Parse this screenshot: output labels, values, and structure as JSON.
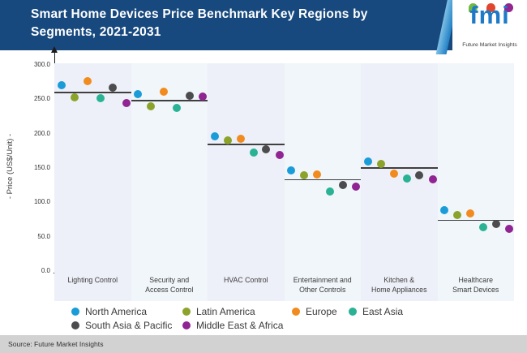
{
  "header": {
    "title_lines": [
      "Smart Home Devices Price Benchmark Key Regions by",
      "Segments, 2021-2031"
    ],
    "logo": {
      "name": "fmi",
      "caption": "Future Market Insights",
      "bubble_colors": [
        "#72b843",
        "#e0472e",
        "#93268f"
      ]
    }
  },
  "chart_data": {
    "type": "scatter",
    "title": "Smart Home Devices Price Benchmark Key Regions by Segments, 2021-2031",
    "ylabel": "- Price (US$/Unit) -",
    "ylim": [
      0,
      300
    ],
    "yticks": [
      0,
      50,
      100,
      150,
      200,
      250,
      300
    ],
    "ytick_labels": [
      "0.0",
      "50.0",
      "100.0",
      "150.0",
      "200.0",
      "250.0",
      "300.0"
    ],
    "grid": false,
    "legend_position": "bottom",
    "band_colors": [
      "#edf0f8",
      "#f0f6f9"
    ],
    "categories": [
      "Lighting Control",
      "Security and\nAccess Control",
      "HVAC Control",
      "Entertainment and\nOther Controls",
      "Kitchen &\nHome Appliances",
      "Healthcare\nSmart Devices"
    ],
    "series": [
      {
        "name": "North America",
        "color": "#1a9cd8",
        "values": [
          271,
          258,
          196,
          146,
          159,
          88
        ]
      },
      {
        "name": "Latin America",
        "color": "#8ca32b",
        "values": [
          253,
          240,
          190,
          139,
          156,
          82
        ]
      },
      {
        "name": "Europe",
        "color": "#f28b1f",
        "values": [
          276,
          261,
          193,
          141,
          142,
          84
        ]
      },
      {
        "name": "East Asia",
        "color": "#2ab294",
        "values": [
          251,
          237,
          172,
          116,
          135,
          64
        ]
      },
      {
        "name": "South Asia & Pacific",
        "color": "#4c4c4e",
        "values": [
          267,
          255,
          177,
          125,
          139,
          68
        ]
      },
      {
        "name": "Middle East & Africa",
        "color": "#8f2492",
        "values": [
          244,
          254,
          169,
          123,
          134,
          61
        ]
      }
    ],
    "benchmark_lines": {
      "description": "segment average price line",
      "values": [
        260,
        248,
        184,
        133,
        150,
        74
      ]
    }
  },
  "footer": {
    "source": "Source: Future Market Insights"
  }
}
